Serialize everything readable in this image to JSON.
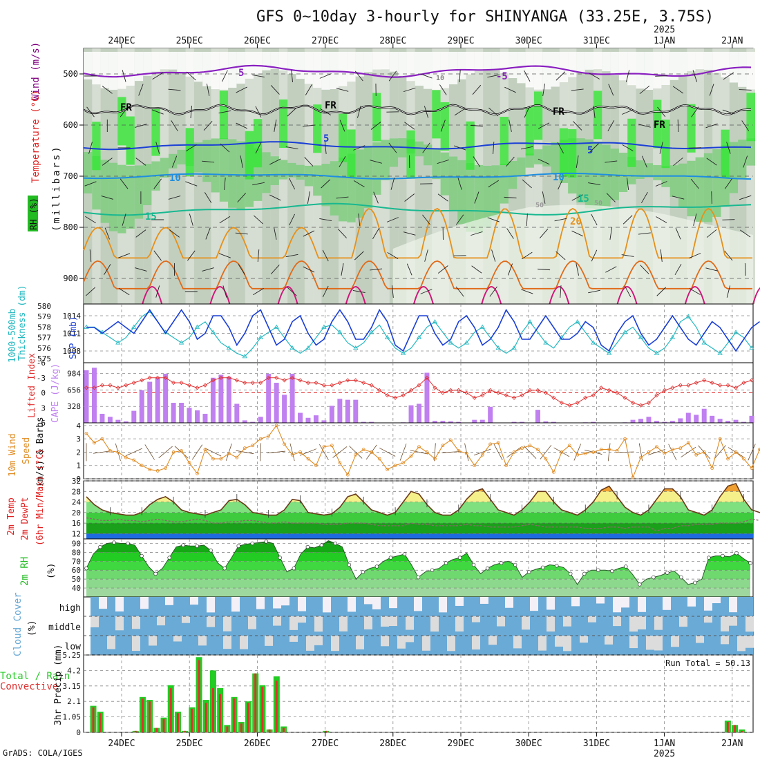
{
  "header": {
    "title": "GFS 0~10day 3-hourly for SHINYANGA (33.25E, 3.75S)",
    "credit": "GrADS: COLA/IGES"
  },
  "colors": {
    "wind": "#800080",
    "temp_line": "#e02020",
    "rh_green": "#22bb22",
    "slp": "#1a3fd6",
    "thickness": "#22b8c0",
    "cape": "#c080f0",
    "li": "#e03030",
    "wind10": "#e08a20",
    "rain_total": "#22cc22",
    "rain_conv": "#e03030",
    "cloud": "#6aaad6"
  },
  "time_axis": {
    "top_labels": [
      "24DEC",
      "25DEC",
      "26DEC",
      "27DEC",
      "28DEC",
      "29DEC",
      "30DEC",
      "31DEC",
      "1JAN",
      "2JAN"
    ],
    "top_year": "2025",
    "bottom_labels": [
      "24DEC",
      "25DEC",
      "26DEC",
      "27DEC",
      "28DEC",
      "29DEC",
      "30DEC",
      "31DEC",
      "1JAN",
      "2JAN"
    ],
    "bottom_year": "2025"
  },
  "panel_labels": {
    "wind": "Wind (m/s)",
    "temperature": "Temperature (°C)",
    "rh": "RH (%)",
    "millibars": "(millibars)",
    "thickness": "1000-500mb",
    "thickness2": "Thickness (dm)",
    "slp": "SLP (mb)",
    "li": "Lifted Index",
    "cape": "CAPE (J/kg)",
    "wind10": "10m Wind",
    "speed": "Speed",
    "barbs": "(m/s) & Barbs",
    "t2m": "2m Temp",
    "td2m": "2m DewPt",
    "minmax": "(6hr Min/Max) (°C)",
    "rh2m": "2m RH",
    "rh2m_unit": "(%)",
    "cloud": "Cloud Cover",
    "cloud_unit": "(%)",
    "rain1": "Total / Rain",
    "rain2": "Convective",
    "precip": "3hr Precip (mm)"
  },
  "upper_air": {
    "yticks": [
      "500",
      "600",
      "700",
      "800",
      "900"
    ],
    "contour_labels": [
      "5",
      "-5",
      "FR",
      "FR",
      "FR",
      "FR",
      "5",
      "5",
      "10",
      "10",
      "15",
      "15",
      "20",
      "10",
      "50",
      "50"
    ]
  },
  "chart_data": [
    {
      "type": "line",
      "title": "SLP and 1000-500mb Thickness",
      "x_start": "23DEC 12Z",
      "x_step_hours": 3,
      "series": [
        {
          "name": "SLP (mb)",
          "ylim": [
            1006,
            1016
          ],
          "ticks": [
            "1014",
            "1011",
            "1008"
          ],
          "values": [
            1012,
            1012,
            1011,
            1012,
            1013,
            1012,
            1011,
            1013,
            1015,
            1013,
            1011,
            1013,
            1015,
            1013,
            1010,
            1011,
            1014,
            1014,
            1012,
            1009,
            1011,
            1014,
            1015,
            1012,
            1009,
            1010,
            1013,
            1014,
            1011,
            1009,
            1010,
            1013,
            1015,
            1013,
            1010,
            1010,
            1012,
            1015,
            1013,
            1009,
            1008,
            1011,
            1014,
            1014,
            1011,
            1009,
            1010,
            1013,
            1014,
            1012,
            1009,
            1010,
            1012,
            1015,
            1013,
            1010,
            1010,
            1012,
            1014,
            1012,
            1010,
            1010,
            1011,
            1013,
            1012,
            1009,
            1008,
            1011,
            1013,
            1014,
            1011,
            1009,
            1010,
            1012,
            1014,
            1012,
            1010,
            1009,
            1011,
            1013,
            1012,
            1010,
            1008,
            1010,
            1012,
            1013
          ]
        },
        {
          "name": "1000-500mb Thickness (dm)",
          "ylim": [
            574.6,
            580.2
          ],
          "ticks": [
            "580",
            "579",
            "578",
            "577",
            "576",
            "575"
          ],
          "values": [
            578,
            578,
            577.5,
            577,
            576.5,
            577,
            578,
            579,
            579.5,
            578.5,
            577.5,
            577,
            576.5,
            577,
            578,
            578.5,
            577.5,
            576.5,
            576,
            575.5,
            575.2,
            576,
            577,
            577.5,
            578,
            577,
            576,
            575.5,
            576,
            577,
            578,
            578.2,
            577.5,
            576.5,
            576,
            576.5,
            577.5,
            578.2,
            577,
            576,
            575.5,
            576,
            577,
            578,
            578.5,
            577.5,
            576.5,
            576,
            576.5,
            577.5,
            578,
            577,
            576,
            575.5,
            576,
            577.5,
            578.5,
            577.5,
            576.5,
            576,
            577,
            578,
            578.5,
            577.5,
            576.5,
            576,
            575.5,
            576.5,
            577.5,
            578,
            577,
            576,
            575.5,
            576,
            577,
            578.5,
            579,
            578,
            576.5,
            576,
            575.5,
            576.5,
            577.5,
            577,
            576
          ]
        }
      ]
    },
    {
      "type": "bar",
      "title": "CAPE and Lifted Index",
      "series": [
        {
          "name": "CAPE (J/kg)",
          "ylim": [
            0,
            1200
          ],
          "ticks": [
            "984",
            "656",
            "328"
          ],
          "values": [
            1050,
            1100,
            180,
            120,
            60,
            30,
            240,
            650,
            820,
            900,
            980,
            400,
            400,
            300,
            250,
            180,
            900,
            960,
            920,
            380,
            50,
            20,
            120,
            980,
            800,
            560,
            980,
            200,
            100,
            150,
            50,
            340,
            480,
            460,
            460,
            20,
            20,
            0,
            0,
            0,
            10,
            350,
            380,
            1000,
            40,
            40,
            30,
            20,
            0,
            60,
            60,
            320,
            0,
            0,
            20,
            20,
            0,
            260,
            30,
            20,
            0,
            0,
            0,
            10,
            20,
            0,
            0,
            0,
            10,
            60,
            80,
            120,
            40,
            20,
            40,
            90,
            200,
            160,
            280,
            140,
            80,
            40,
            60,
            20,
            140
          ]
        },
        {
          "name": "Lifted Index",
          "ylim": [
            6,
            -6
          ],
          "ticks": [
            "-6",
            "-3",
            "0",
            "3",
            "6"
          ],
          "values": [
            -1,
            -1,
            -1.5,
            -1.5,
            -1,
            -1.5,
            -2,
            -2.5,
            -3,
            -3,
            -3,
            -2,
            -2,
            -1.5,
            -1,
            -1.5,
            -2.5,
            -3,
            -3,
            -2.5,
            -2,
            -2,
            -2,
            -3,
            -3,
            -2.5,
            -3,
            -2.5,
            -2,
            -2,
            -1.5,
            -1.5,
            -2,
            -2.5,
            -2.5,
            -2,
            -1.5,
            -0.5,
            0.5,
            1,
            0.5,
            -0.5,
            -1.5,
            -3,
            -1,
            0,
            -0.5,
            -0.5,
            0,
            1,
            0.5,
            -0.5,
            0,
            0.5,
            1,
            0.5,
            -0.5,
            -0.5,
            0,
            1,
            2,
            2.5,
            2,
            1,
            0.5,
            -1,
            -0.5,
            0,
            1,
            2,
            2.5,
            2,
            0.5,
            -0.5,
            -1,
            -1.5,
            -1.5,
            -2,
            -2.5,
            -2,
            -1.5,
            -1.5,
            -1,
            -2,
            -2.5
          ]
        }
      ]
    },
    {
      "type": "line",
      "title": "10m Wind Speed",
      "ylim": [
        0,
        4.2
      ],
      "ticks": [
        "4",
        "3",
        "2",
        "1",
        "0"
      ],
      "series": [
        {
          "name": "10m Wind Speed (m/s)",
          "values": [
            3.4,
            2.7,
            3.0,
            2.1,
            2.0,
            1.6,
            1.4,
            1.0,
            0.7,
            0.6,
            0.8,
            2.0,
            2.1,
            1.2,
            0.4,
            2.2,
            1.5,
            1.5,
            1.9,
            1.6,
            2.3,
            2.5,
            3.0,
            3.2,
            4.0,
            2.6,
            1.8,
            2.0,
            1.5,
            1.0,
            2.4,
            2.5,
            1.2,
            0.3,
            1.8,
            2.2,
            2.0,
            1.5,
            0.7,
            1.0,
            1.2,
            1.7,
            2.4,
            2.0,
            1.5,
            2.5,
            2.9,
            2.1,
            1.9,
            1.0,
            1.8,
            2.6,
            2.7,
            1.0,
            2.0,
            2.3,
            2.5,
            2.2,
            1.5,
            0.5,
            2.0,
            2.5,
            1.8,
            1.9,
            2.0,
            2.2,
            2.2,
            2.1,
            3.0,
            0.1,
            1.6,
            2.0,
            2.4,
            1.9,
            2.2,
            2.3,
            2.7,
            1.8,
            2.0,
            0.8,
            3.0,
            1.5,
            2.0,
            1.5,
            0.8,
            2.2,
            3.3,
            2.1
          ]
        }
      ]
    },
    {
      "type": "area",
      "title": "2m Temp / DewPt",
      "ylim": [
        10,
        32
      ],
      "ticks": [
        "32",
        "28",
        "24",
        "20",
        "16",
        "12"
      ],
      "series": [
        {
          "name": "2m Temp (°C)",
          "values": [
            26,
            23,
            21,
            20,
            19.5,
            19,
            19,
            20,
            23,
            25,
            26,
            24,
            21,
            20,
            19.5,
            19,
            20,
            21,
            24.5,
            25,
            23,
            20,
            19.5,
            19,
            19,
            21,
            25,
            24.5,
            20,
            19.5,
            19,
            19.5,
            22,
            26,
            27,
            24,
            21,
            20,
            19,
            20,
            24,
            28,
            27,
            23,
            20,
            19,
            19,
            21,
            25,
            28,
            29,
            25,
            21,
            20,
            19,
            21,
            24,
            28,
            28,
            24,
            21,
            20,
            19,
            21,
            24,
            28.5,
            30,
            26,
            22,
            20,
            19,
            21,
            25,
            29,
            29,
            26,
            21,
            20,
            19,
            21,
            26,
            30,
            31,
            25,
            21,
            20,
            19,
            20,
            22
          ]
        },
        {
          "name": "2m DewPt (°C)",
          "values": [
            18,
            17.5,
            17,
            17,
            17.5,
            17,
            17,
            16.5,
            17,
            17.5,
            17,
            16.5,
            16.5,
            17,
            17.5,
            17,
            16,
            16,
            16.5,
            16.5,
            17,
            17,
            16.5,
            16,
            16,
            16.5,
            16,
            16,
            16,
            16,
            15.5,
            15.5,
            15.5,
            16,
            16,
            16,
            15.5,
            15,
            15,
            15,
            15,
            16,
            15.5,
            15.5,
            15,
            15,
            15,
            15,
            15.5,
            15,
            15,
            14.5,
            14.5,
            14.5,
            14.5,
            15,
            15.5,
            15,
            14.5,
            14.5,
            14.5,
            14.5,
            14.5,
            14,
            14,
            14,
            14.5,
            14.5,
            14,
            14.5,
            14.5,
            14.5,
            13,
            14,
            14,
            15,
            15,
            15.5,
            15.5,
            15.5,
            16,
            16,
            16,
            16.5,
            17.5,
            17
          ]
        }
      ]
    },
    {
      "type": "area",
      "title": "2m RH",
      "ylim": [
        30,
        95
      ],
      "ticks": [
        "90",
        "80",
        "70",
        "60",
        "50",
        "40"
      ],
      "series": [
        {
          "name": "2m RH (%)",
          "values": [
            62,
            78,
            86,
            90,
            91,
            90,
            90,
            88,
            76,
            64,
            56,
            62,
            74,
            86,
            88,
            87,
            87,
            88,
            82,
            68,
            62,
            74,
            87,
            89,
            90,
            91,
            92,
            90,
            74,
            58,
            62,
            78,
            86,
            85,
            88,
            93,
            90,
            86,
            66,
            50,
            58,
            62,
            64,
            70,
            74,
            76,
            78,
            66,
            52,
            58,
            60,
            62,
            68,
            72,
            74,
            79,
            66,
            56,
            62,
            66,
            68,
            70,
            66,
            52,
            58,
            61,
            63,
            66,
            65,
            63,
            56,
            44,
            56,
            60,
            60,
            60,
            59,
            62,
            64,
            55,
            44,
            50,
            52,
            54,
            57,
            59,
            52,
            44,
            46,
            50,
            74,
            76,
            76,
            75,
            79,
            73,
            68
          ]
        }
      ]
    },
    {
      "type": "heatmap",
      "title": "Cloud Cover",
      "rows": [
        "high",
        "middle",
        "low"
      ]
    },
    {
      "type": "bar",
      "title": "3hr Precip (mm)",
      "ylim": [
        0,
        5.25
      ],
      "ticks": [
        "5.25",
        "4.2",
        "3.15",
        "2.1",
        "1.05",
        "0"
      ],
      "annotation": "Run Total = 50.13",
      "series": [
        {
          "name": "Total / Rain",
          "values": [
            1.8,
            1.4,
            0,
            0,
            0,
            0,
            0.1,
            2.4,
            2.2,
            0.3,
            1.0,
            3.2,
            1.4,
            0.1,
            1.7,
            5.1,
            2.2,
            4.2,
            3.0,
            0.5,
            2.4,
            0.7,
            2.1,
            4.0,
            3.2,
            0.2,
            3.8,
            0.4,
            0,
            0,
            0,
            0,
            0,
            0.1,
            0,
            0,
            0,
            0,
            0,
            0,
            0,
            0,
            0,
            0,
            0,
            0,
            0,
            0,
            0,
            0,
            0,
            0,
            0,
            0,
            0,
            0,
            0,
            0,
            0,
            0,
            0,
            0,
            0,
            0,
            0,
            0,
            0,
            0,
            0,
            0,
            0,
            0,
            0,
            0,
            0,
            0,
            0,
            0,
            0,
            0,
            0,
            0,
            0,
            0,
            0,
            0,
            0,
            0,
            0,
            0,
            0.8,
            0.5,
            0.2,
            0
          ]
        },
        {
          "name": "Convective",
          "values": [
            1.7,
            1.3,
            0,
            0,
            0,
            0,
            0.1,
            2.3,
            2.1,
            0.3,
            0.9,
            3.0,
            1.3,
            0.1,
            1.6,
            4.9,
            2.0,
            3.0,
            2.6,
            0.4,
            2.3,
            0.6,
            2.0,
            4.0,
            3.1,
            0.2,
            3.5,
            0.3,
            0,
            0,
            0,
            0,
            0,
            0.1,
            0,
            0,
            0,
            0,
            0,
            0,
            0,
            0,
            0,
            0,
            0,
            0,
            0,
            0,
            0,
            0,
            0,
            0,
            0,
            0,
            0,
            0,
            0,
            0,
            0,
            0,
            0,
            0,
            0,
            0,
            0,
            0,
            0,
            0,
            0,
            0,
            0,
            0,
            0,
            0,
            0,
            0,
            0,
            0,
            0,
            0,
            0,
            0,
            0,
            0,
            0,
            0,
            0,
            0,
            0,
            0,
            0.7,
            0.5,
            0.1,
            0
          ]
        }
      ]
    }
  ]
}
